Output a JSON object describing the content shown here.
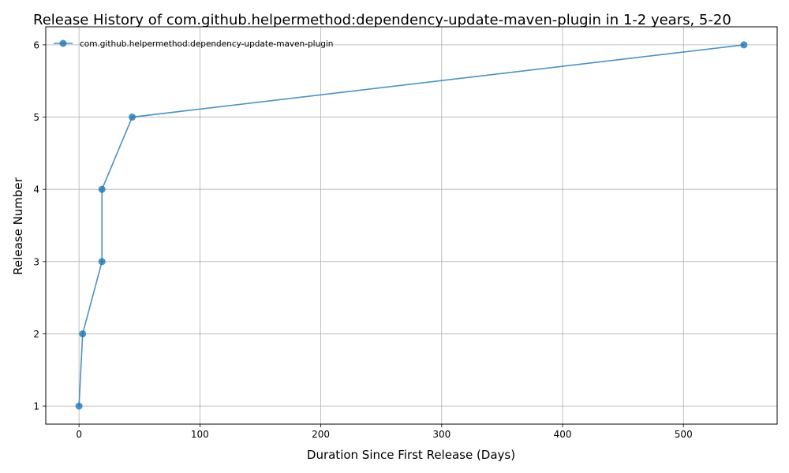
{
  "chart_data": {
    "type": "line",
    "title": "Release History of com.github.helpermethod:dependency-update-maven-plugin in 1-2 years, 5-20",
    "xlabel": "Duration Since First Release (Days)",
    "ylabel": "Release Number",
    "xlim": [
      -27.5,
      577.5
    ],
    "ylim": [
      0.75,
      6.25
    ],
    "xticks": [
      0,
      100,
      200,
      300,
      400,
      500
    ],
    "yticks": [
      1,
      2,
      3,
      4,
      5,
      6
    ],
    "grid": true,
    "legend_position": "top-left",
    "series": [
      {
        "name": "com.github.helpermethod:dependency-update-maven-plugin",
        "color": "#1f77b4",
        "x": [
          0,
          3,
          19,
          19,
          44,
          550
        ],
        "y": [
          1,
          2,
          3,
          4,
          5,
          6
        ]
      }
    ]
  }
}
